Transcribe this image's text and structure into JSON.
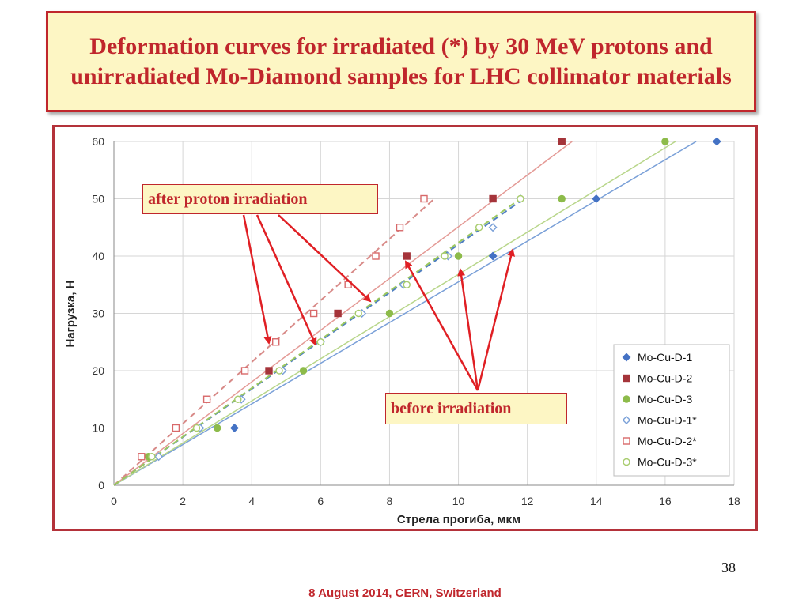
{
  "slide": {
    "title": "Deformation curves for irradiated (*) by 30 MeV protons and unirradiated Mo-Diamond samples for LHC collimator materials",
    "page_number": "38",
    "footer": "8 August 2014, CERN, Switzerland"
  },
  "annotations": {
    "after": "after proton irradiation",
    "before": "before  irradiation"
  },
  "chart_data": {
    "type": "scatter",
    "xlabel": "Стрела прогиба, мкм",
    "ylabel": "Нагрузка, Н",
    "xlim": [
      0,
      18
    ],
    "ylim": [
      0,
      60
    ],
    "xticks": [
      "0",
      "2",
      "4",
      "6",
      "8",
      "10",
      "12",
      "14",
      "16",
      "18"
    ],
    "yticks": [
      "0",
      "10",
      "20",
      "30",
      "40",
      "50",
      "60"
    ],
    "grid": true,
    "legend_position": "right",
    "series": [
      {
        "name": "Mo-Cu-D-1",
        "marker": "diamond",
        "filled": true,
        "color": "#4472c4",
        "points": [
          [
            3.5,
            10
          ],
          [
            11,
            40
          ],
          [
            14,
            50
          ],
          [
            17.5,
            60
          ]
        ],
        "trend": [
          [
            0,
            0
          ],
          [
            16.9,
            60
          ]
        ],
        "dashed": false,
        "line_color": "#7aa0d8"
      },
      {
        "name": "Mo-Cu-D-2",
        "marker": "square",
        "filled": true,
        "color": "#a5343a",
        "points": [
          [
            4.5,
            20
          ],
          [
            6.5,
            30
          ],
          [
            8.5,
            40
          ],
          [
            11,
            50
          ],
          [
            13,
            60
          ]
        ],
        "trend": [
          [
            0,
            0
          ],
          [
            13.3,
            60
          ]
        ],
        "dashed": false,
        "line_color": "#e49a96"
      },
      {
        "name": "Mo-Cu-D-3",
        "marker": "circle",
        "filled": true,
        "color": "#8dbb4a",
        "points": [
          [
            1,
            5
          ],
          [
            3,
            10
          ],
          [
            5.5,
            20
          ],
          [
            8,
            30
          ],
          [
            10,
            40
          ],
          [
            13,
            50
          ],
          [
            16,
            60
          ]
        ],
        "trend": [
          [
            0,
            0
          ],
          [
            16.3,
            60
          ]
        ],
        "dashed": false,
        "line_color": "#b8d68a"
      },
      {
        "name": "Mo-Cu-D-1*",
        "marker": "diamond",
        "filled": false,
        "color": "#7aa0d8",
        "points": [
          [
            1.3,
            5
          ],
          [
            2.5,
            10
          ],
          [
            3.7,
            15
          ],
          [
            4.9,
            20
          ],
          [
            6,
            25
          ],
          [
            7.2,
            30
          ],
          [
            8.4,
            35
          ],
          [
            9.7,
            40
          ],
          [
            11,
            45
          ],
          [
            11.8,
            50
          ]
        ],
        "trend": [
          [
            0,
            0
          ],
          [
            11.9,
            50
          ]
        ],
        "dashed": true,
        "line_color": "#4f7fc0"
      },
      {
        "name": "Mo-Cu-D-2*",
        "marker": "square",
        "filled": false,
        "color": "#d8696a",
        "points": [
          [
            0.8,
            5
          ],
          [
            1.8,
            10
          ],
          [
            2.7,
            15
          ],
          [
            3.8,
            20
          ],
          [
            4.7,
            25
          ],
          [
            5.8,
            30
          ],
          [
            6.8,
            35
          ],
          [
            7.6,
            40
          ],
          [
            8.3,
            45
          ],
          [
            9,
            50
          ]
        ],
        "trend": [
          [
            0,
            0
          ],
          [
            9.3,
            50
          ]
        ],
        "dashed": true,
        "line_color": "#d88a88"
      },
      {
        "name": "Mo-Cu-D-3*",
        "marker": "circle",
        "filled": false,
        "color": "#a8cc6e",
        "points": [
          [
            1.1,
            5
          ],
          [
            2.4,
            10
          ],
          [
            3.6,
            15
          ],
          [
            4.8,
            20
          ],
          [
            6,
            25
          ],
          [
            7.1,
            30
          ],
          [
            8.5,
            35
          ],
          [
            9.6,
            40
          ],
          [
            10.6,
            45
          ],
          [
            11.8,
            50
          ]
        ],
        "trend": [
          [
            0,
            0
          ],
          [
            11.8,
            50
          ]
        ],
        "dashed": true,
        "line_color": "#9cc85e"
      }
    ]
  }
}
